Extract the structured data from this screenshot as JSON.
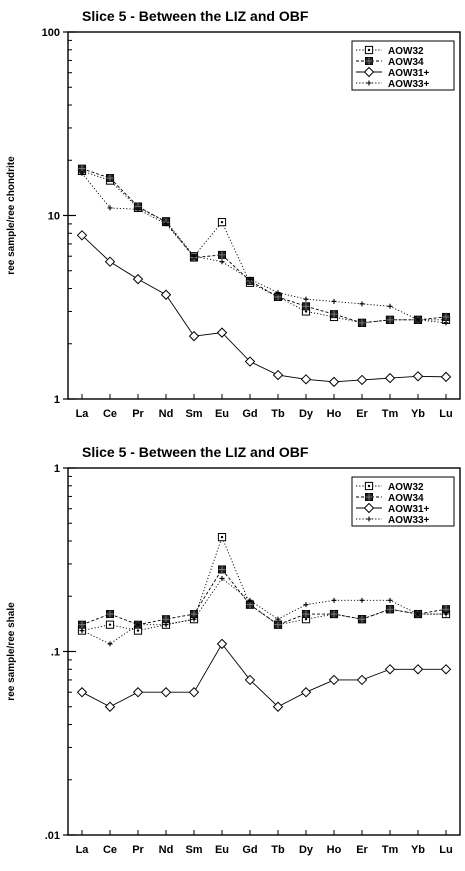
{
  "chart_data": [
    {
      "type": "line",
      "title": "Slice 5 - Between the LIZ and OBF",
      "xlabel": "",
      "ylabel": "ree sample/ree chondrite",
      "yscale": "log",
      "ylim": [
        1,
        100
      ],
      "yticks": [
        {
          "value": 1,
          "label": "1"
        },
        {
          "value": 10,
          "label": "10"
        },
        {
          "value": 100,
          "label": "100"
        }
      ],
      "categories": [
        "La",
        "Ce",
        "Pr",
        "Nd",
        "Sm",
        "Eu",
        "Gd",
        "Tb",
        "Dy",
        "Ho",
        "Er",
        "Tm",
        "Yb",
        "Lu"
      ],
      "legend_position": "top-right",
      "grid": false,
      "series": [
        {
          "name": "AOW32",
          "marker": "square-dot",
          "line": "dotted",
          "values": [
            17.5,
            15.5,
            11.0,
            9.3,
            6.0,
            9.2,
            4.3,
            3.6,
            3.0,
            2.8,
            2.6,
            2.7,
            2.7,
            2.7
          ]
        },
        {
          "name": "AOW34",
          "marker": "filled-square",
          "line": "dashed",
          "values": [
            18.0,
            16.0,
            11.2,
            9.2,
            5.9,
            6.1,
            4.4,
            3.6,
            3.2,
            2.9,
            2.6,
            2.7,
            2.7,
            2.8
          ]
        },
        {
          "name": "AOW31+",
          "marker": "diamond",
          "line": "solid",
          "values": [
            7.8,
            5.6,
            4.5,
            3.7,
            2.2,
            2.3,
            1.6,
            1.35,
            1.28,
            1.24,
            1.27,
            1.3,
            1.33,
            1.32
          ]
        },
        {
          "name": "AOW33+",
          "marker": "plus",
          "line": "dotted",
          "values": [
            17.0,
            11.0,
            10.8,
            9.0,
            6.0,
            5.6,
            4.5,
            3.8,
            3.5,
            3.4,
            3.3,
            3.2,
            2.7,
            2.6
          ]
        }
      ]
    },
    {
      "type": "line",
      "title": "Slice 5 - Between the LIZ and OBF",
      "xlabel": "",
      "ylabel": "ree sample/ree shale",
      "yscale": "log",
      "ylim": [
        0.01,
        1
      ],
      "yticks": [
        {
          "value": 0.01,
          "label": ".01"
        },
        {
          "value": 0.1,
          "label": ".1"
        },
        {
          "value": 1,
          "label": "1"
        }
      ],
      "categories": [
        "La",
        "Ce",
        "Pr",
        "Nd",
        "Sm",
        "Eu",
        "Gd",
        "Tb",
        "Dy",
        "Ho",
        "Er",
        "Tm",
        "Yb",
        "Lu"
      ],
      "legend_position": "top-right",
      "grid": false,
      "series": [
        {
          "name": "AOW32",
          "marker": "square-dot",
          "line": "dotted",
          "values": [
            0.13,
            0.14,
            0.13,
            0.14,
            0.15,
            0.42,
            0.18,
            0.14,
            0.15,
            0.16,
            0.15,
            0.17,
            0.16,
            0.16
          ]
        },
        {
          "name": "AOW34",
          "marker": "filled-square",
          "line": "dashed",
          "values": [
            0.14,
            0.16,
            0.14,
            0.15,
            0.16,
            0.28,
            0.18,
            0.14,
            0.16,
            0.16,
            0.15,
            0.17,
            0.16,
            0.17
          ]
        },
        {
          "name": "AOW31+",
          "marker": "diamond",
          "line": "solid",
          "values": [
            0.06,
            0.05,
            0.06,
            0.06,
            0.06,
            0.11,
            0.07,
            0.05,
            0.06,
            0.07,
            0.07,
            0.08,
            0.08,
            0.08
          ]
        },
        {
          "name": "AOW33+",
          "marker": "plus",
          "line": "dotted",
          "values": [
            0.13,
            0.11,
            0.14,
            0.14,
            0.15,
            0.25,
            0.19,
            0.15,
            0.18,
            0.19,
            0.19,
            0.19,
            0.16,
            0.16
          ]
        }
      ]
    }
  ]
}
